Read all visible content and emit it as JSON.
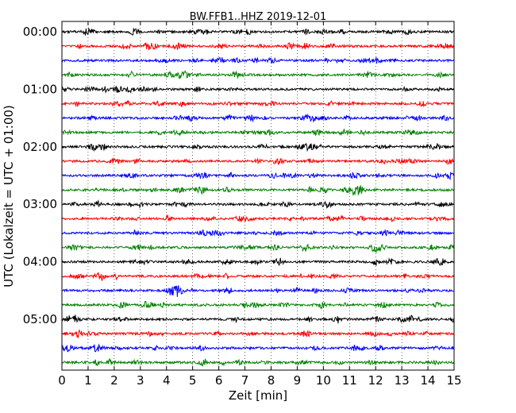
{
  "chart_data": {
    "type": "line",
    "title": "BW.FFB1..HHZ 2019-12-01",
    "xlabel": "Zeit  [min]",
    "ylabel": "UTC (Lokalzeit = UTC + 01:00)",
    "xlim": [
      0,
      15
    ],
    "x_ticks": [
      "0",
      "1",
      "2",
      "3",
      "4",
      "5",
      "6",
      "7",
      "8",
      "9",
      "10",
      "11",
      "12",
      "13",
      "14",
      "15"
    ],
    "y_tick_labels": [
      "00:00",
      "01:00",
      "02:00",
      "03:00",
      "04:00",
      "05:00"
    ],
    "grid": "vertical dotted at each minute",
    "line_colors": [
      "#000000",
      "#ff0000",
      "#0000ff",
      "#008000"
    ],
    "rows_per_hour": 4,
    "minutes_per_row": 15,
    "series": [
      {
        "start": "00:00",
        "color": "#000000"
      },
      {
        "start": "00:15",
        "color": "#ff0000"
      },
      {
        "start": "00:30",
        "color": "#0000ff"
      },
      {
        "start": "00:45",
        "color": "#008000"
      },
      {
        "start": "01:00",
        "color": "#000000"
      },
      {
        "start": "01:15",
        "color": "#ff0000"
      },
      {
        "start": "01:30",
        "color": "#0000ff"
      },
      {
        "start": "01:45",
        "color": "#008000"
      },
      {
        "start": "02:00",
        "color": "#000000"
      },
      {
        "start": "02:15",
        "color": "#ff0000"
      },
      {
        "start": "02:30",
        "color": "#0000ff"
      },
      {
        "start": "02:45",
        "color": "#008000"
      },
      {
        "start": "03:00",
        "color": "#000000"
      },
      {
        "start": "03:15",
        "color": "#ff0000"
      },
      {
        "start": "03:30",
        "color": "#0000ff"
      },
      {
        "start": "03:45",
        "color": "#008000"
      },
      {
        "start": "04:00",
        "color": "#000000"
      },
      {
        "start": "04:15",
        "color": "#ff0000"
      },
      {
        "start": "04:30",
        "color": "#0000ff"
      },
      {
        "start": "04:45",
        "color": "#008000"
      },
      {
        "start": "05:00",
        "color": "#000000"
      },
      {
        "start": "05:15",
        "color": "#ff0000"
      },
      {
        "start": "05:30",
        "color": "#0000ff"
      },
      {
        "start": "05:45",
        "color": "#008000"
      }
    ]
  }
}
